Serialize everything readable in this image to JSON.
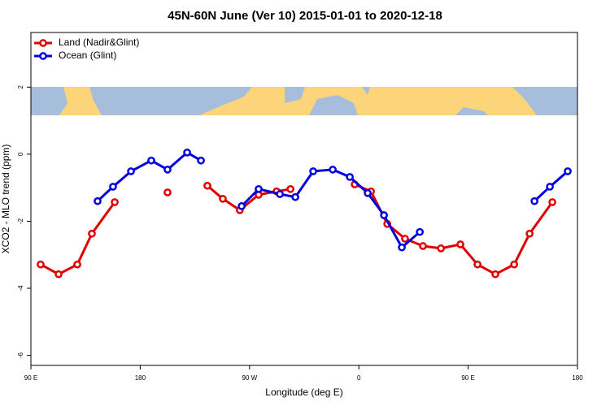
{
  "chart_data": {
    "type": "line",
    "title": "45N-60N June (Ver 10)   2015-01-01 to 2020-12-18",
    "x_label": "Longitude (deg E)",
    "y_label": "XCO2 - MLO trend (ppm)",
    "xlim": [
      90,
      540
    ],
    "xticks": [
      {
        "value": 90,
        "label": "90 E"
      },
      180,
      {
        "value": 270,
        "label": "90 W"
      },
      {
        "value": 360,
        "label": "0"
      },
      {
        "value": 450,
        "label": "90 E"
      },
      {
        "value": 540,
        "label": "180"
      }
    ],
    "ylim": [
      -6.3,
      3.63
    ],
    "yticks": [
      -6,
      -4,
      -2,
      0,
      2
    ],
    "legend": "top-left",
    "series": [
      {
        "name": "Land (Nadir&Glint)",
        "color": "#e00000",
        "x": [
          98,
          112.8,
          128.2,
          140.2,
          159,
          null,
          202.5,
          null,
          235.3,
          248,
          262,
          277.5,
          292.3,
          303.7,
          null,
          356.6,
          370,
          383.4,
          398,
          412.8,
          427.6,
          443.6,
          457.7,
          472.4,
          487.9,
          500.6,
          519.3
        ],
        "values": [
          -3.29,
          -3.58,
          -3.29,
          -2.37,
          -1.43,
          null,
          -1.14,
          null,
          -0.94,
          -1.33,
          -1.67,
          -1.21,
          -1.11,
          -1.04,
          null,
          -0.9,
          -1.11,
          -2.08,
          -2.52,
          -2.74,
          -2.81,
          -2.69,
          -3.29,
          -3.58,
          -3.29,
          -2.37,
          -1.43
        ]
      },
      {
        "name": "Ocean (Glint)",
        "color": "#0000e0",
        "x": [
          144.9,
          157.6,
          172.4,
          189.1,
          202.5,
          218.6,
          230,
          null,
          263.5,
          277.5,
          295,
          307.7,
          322.4,
          338.5,
          352.6,
          367.3,
          380.7,
          395.4,
          410.2,
          null,
          504.6,
          517.3,
          532
        ],
        "values": [
          -1.4,
          -0.97,
          -0.51,
          -0.19,
          -0.46,
          0.05,
          -0.19,
          null,
          -1.55,
          -1.04,
          -1.19,
          -1.28,
          -0.51,
          -0.46,
          -0.68,
          -1.16,
          -1.82,
          -2.78,
          -2.32,
          null,
          -1.4,
          -0.97,
          -0.51
        ]
      }
    ]
  }
}
